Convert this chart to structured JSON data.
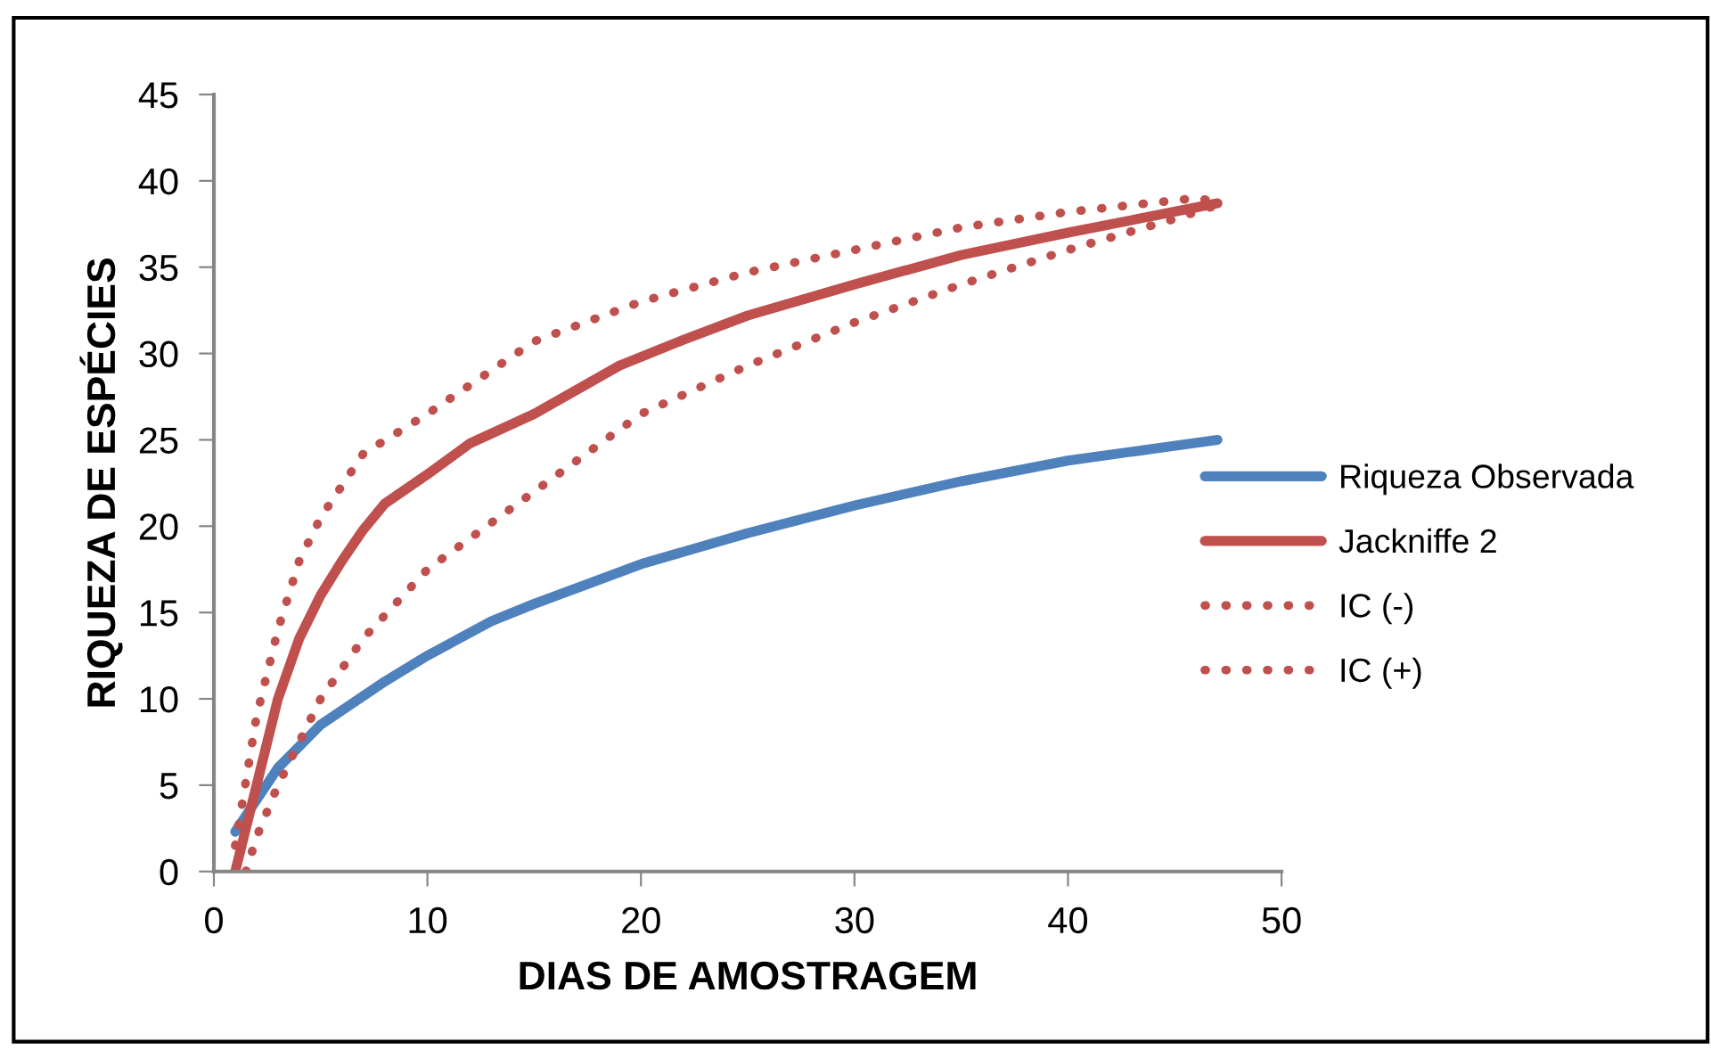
{
  "chart_data": {
    "type": "line",
    "xlabel": "DIAS DE AMOSTRAGEM",
    "ylabel": "RIQUEZA DE ESPÉCIES",
    "xlim": [
      0,
      50
    ],
    "xticks": [
      0,
      10,
      20,
      30,
      40,
      50
    ],
    "ylim": [
      0,
      45
    ],
    "yticks": [
      0,
      5,
      10,
      15,
      20,
      25,
      30,
      35,
      40,
      45
    ],
    "grid": false,
    "legend": "right",
    "marker": "none",
    "series": [
      {
        "name": "Riqueza Observada",
        "color": "#4f81bd",
        "line_style": "solid",
        "x": [
          1,
          3,
          5,
          8,
          10,
          13,
          15,
          20,
          25,
          30,
          35,
          40,
          47
        ],
        "values": [
          2.3,
          6,
          8.5,
          11,
          12.5,
          14.5,
          15.5,
          17.8,
          19.6,
          21.2,
          22.6,
          23.8,
          25
        ]
      },
      {
        "name": "Jackniffe 2",
        "color": "#c0504d",
        "line_style": "solid",
        "x": [
          1,
          2,
          3,
          4,
          5,
          6,
          7,
          8,
          10,
          12,
          15,
          19,
          22,
          25,
          30,
          35,
          40,
          47
        ],
        "values": [
          0,
          5,
          10,
          13.5,
          16,
          18,
          19.8,
          21.3,
          23,
          24.8,
          26.5,
          29.3,
          30.8,
          32.2,
          34,
          35.7,
          37,
          38.7
        ]
      },
      {
        "name": "IC (-)",
        "color": "#c0504d",
        "line_style": "dotted",
        "x": [
          1.5,
          2,
          3,
          4,
          5,
          7,
          10,
          15,
          20,
          25,
          30,
          35,
          40,
          45,
          47
        ],
        "values": [
          0,
          2,
          5,
          7.5,
          10,
          13.5,
          17.5,
          22,
          26.5,
          29.3,
          31.8,
          34,
          36,
          37.8,
          38.6
        ]
      },
      {
        "name": "IC (+)",
        "color": "#c0504d",
        "line_style": "dotted",
        "x": [
          1,
          2,
          3,
          4,
          5,
          7,
          10,
          15,
          20,
          25,
          30,
          35,
          40,
          46,
          47
        ],
        "values": [
          1.5,
          9,
          14,
          18,
          20.5,
          24.2,
          26.5,
          30.7,
          33,
          34.7,
          36,
          37.3,
          38.2,
          39,
          38.8
        ]
      }
    ]
  }
}
